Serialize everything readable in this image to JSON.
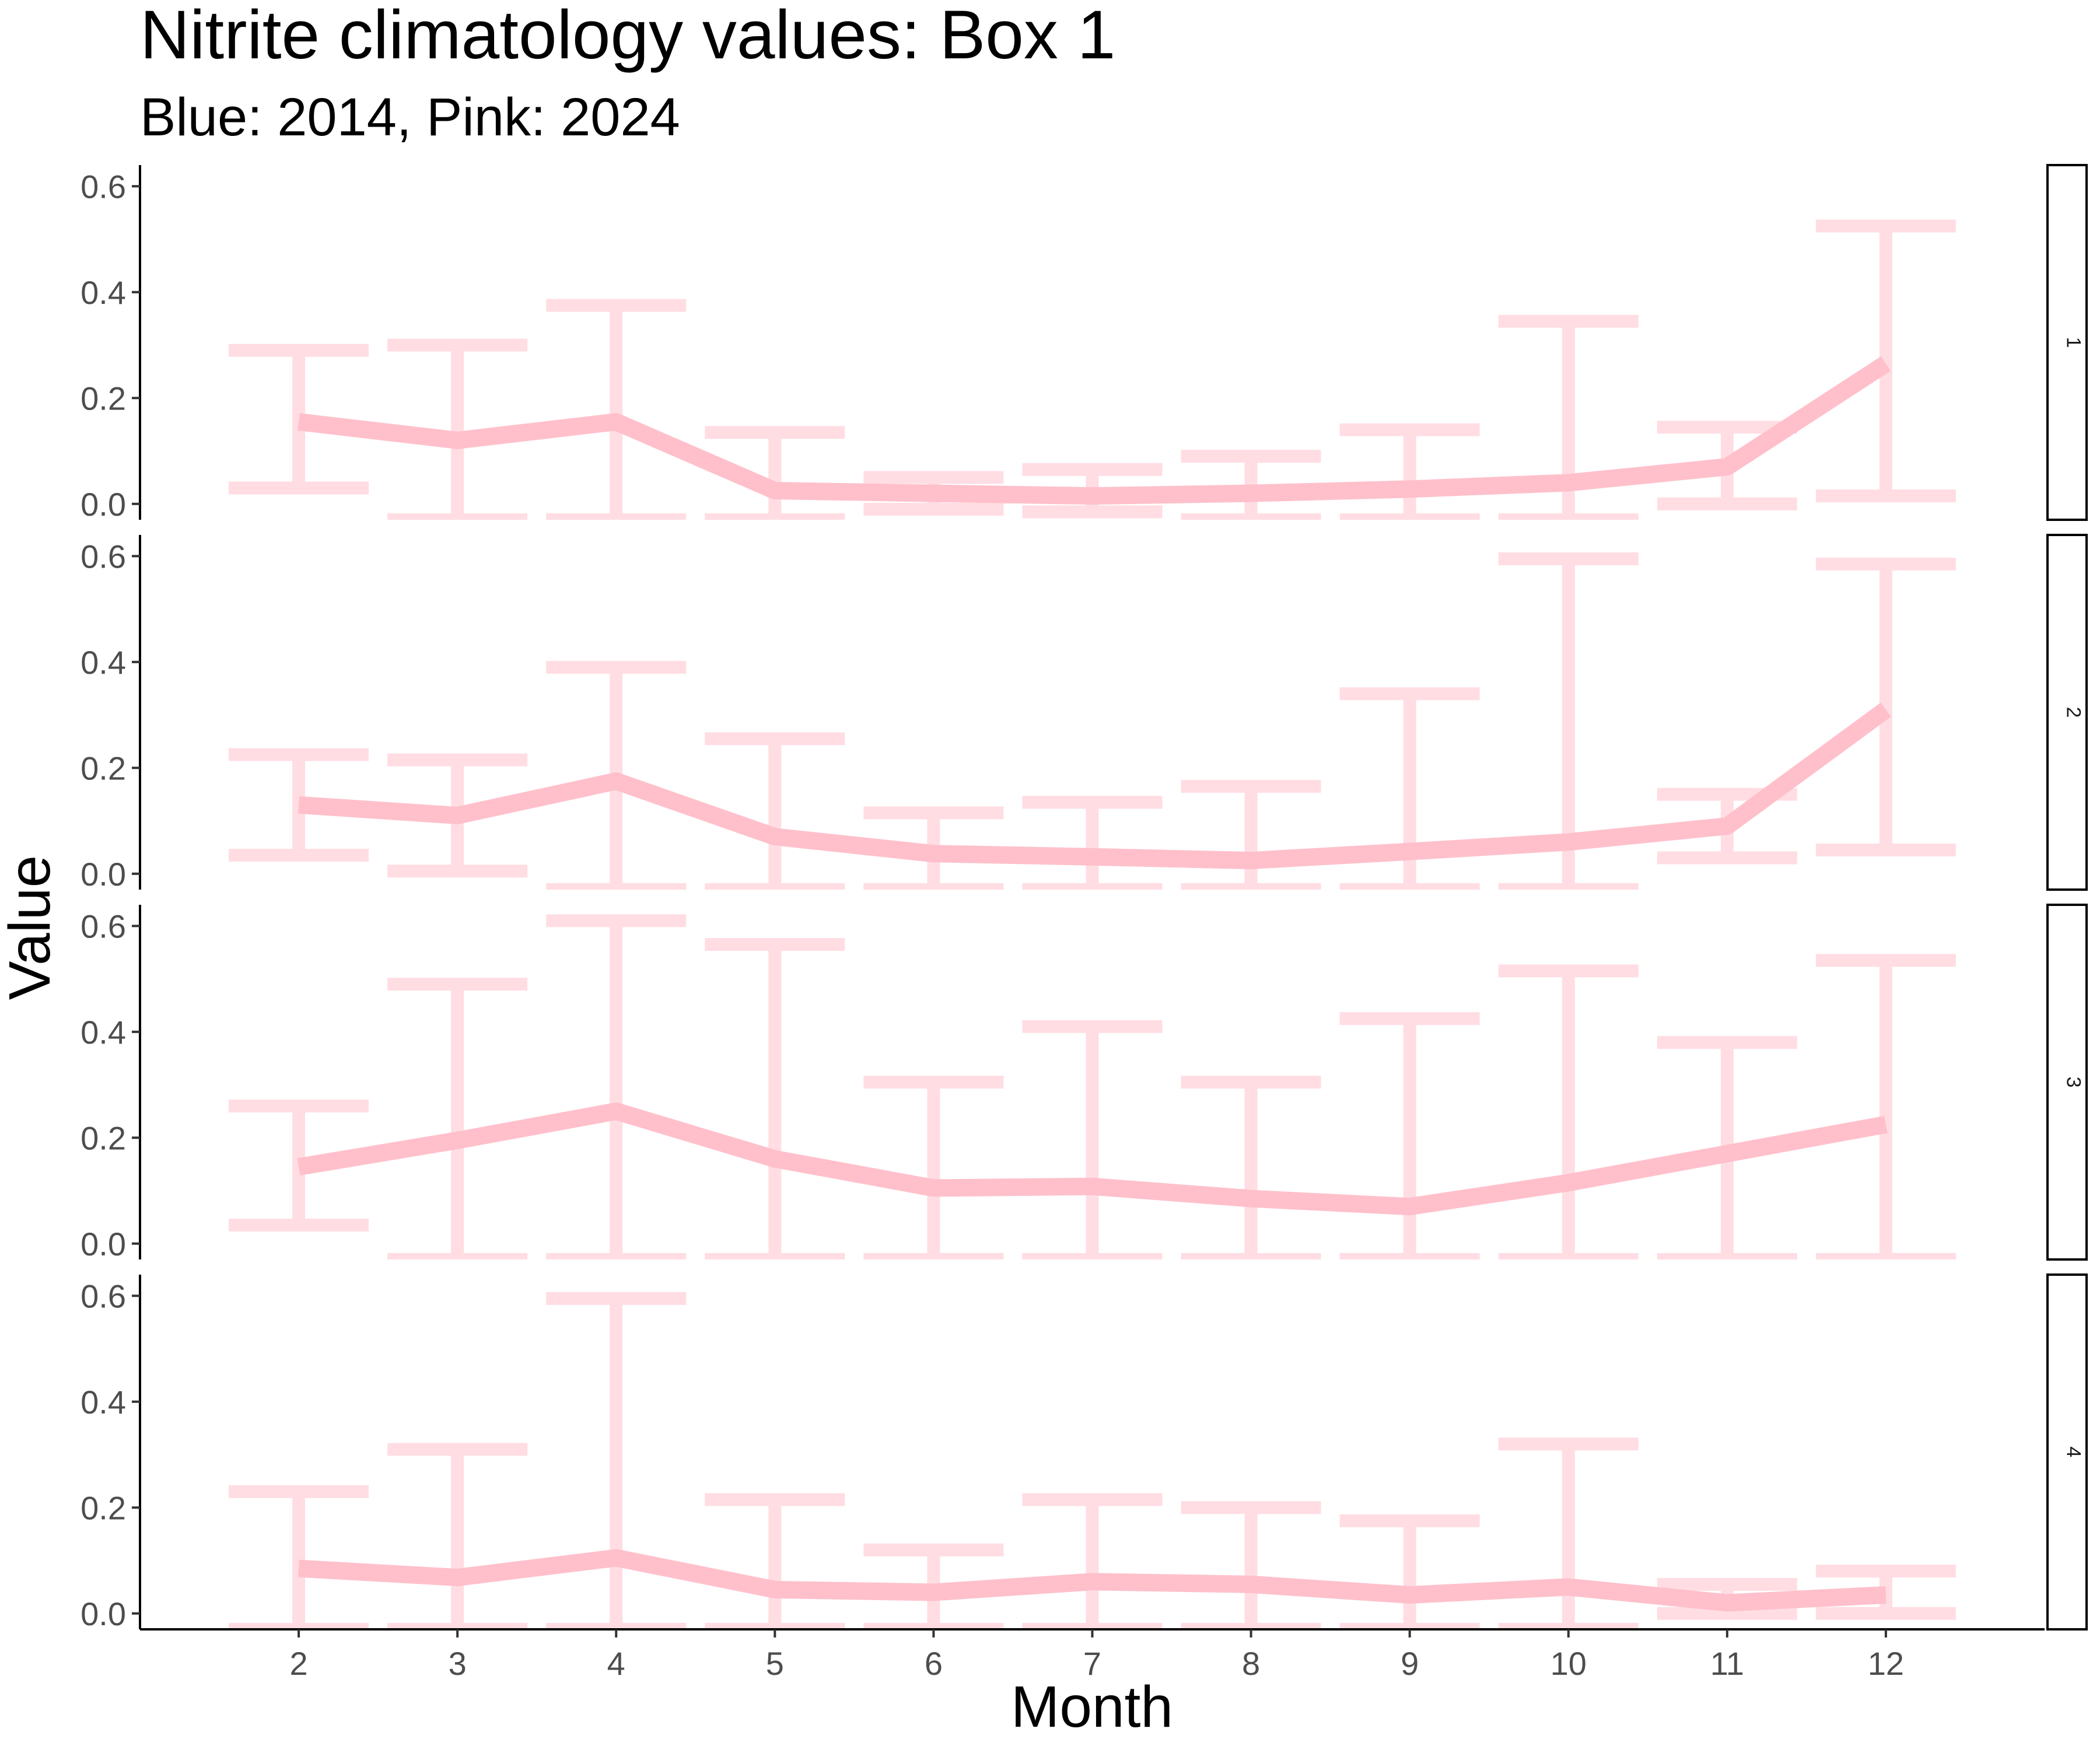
{
  "chart_data": {
    "type": "line",
    "title": "Nitrite climatology values: Box 1",
    "subtitle": "Blue: 2014, Pink: 2024",
    "xlabel": "Month",
    "ylabel": "Value",
    "x": [
      2,
      3,
      4,
      5,
      6,
      7,
      8,
      9,
      10,
      11,
      12
    ],
    "xlim": [
      1,
      13
    ],
    "ylim": [
      -0.03,
      0.64
    ],
    "yticks": [
      0.0,
      0.2,
      0.4,
      0.6
    ],
    "ytick_labels": [
      "0.0",
      "0.2",
      "0.4",
      "0.6"
    ],
    "xtick_labels": [
      "2",
      "3",
      "4",
      "5",
      "6",
      "7",
      "8",
      "9",
      "10",
      "11",
      "12"
    ],
    "grid": false,
    "legend": "none",
    "colors": {
      "line": "#ffc0cb",
      "errorbar": "#ffdde3"
    },
    "panels": [
      {
        "strip": "1",
        "mean": [
          0.155,
          0.12,
          0.155,
          0.025,
          0.02,
          0.015,
          0.02,
          0.028,
          0.04,
          0.07,
          0.265
        ],
        "lower": [
          0.03,
          -0.03,
          -0.03,
          -0.03,
          -0.01,
          -0.015,
          -0.03,
          -0.03,
          -0.03,
          0.0,
          0.015
        ],
        "upper": [
          0.29,
          0.3,
          0.375,
          0.135,
          0.05,
          0.065,
          0.09,
          0.14,
          0.345,
          0.145,
          0.525
        ]
      },
      {
        "strip": "2",
        "mean": [
          0.13,
          0.11,
          0.175,
          0.07,
          0.038,
          0.032,
          0.025,
          0.042,
          0.06,
          0.09,
          0.31
        ],
        "lower": [
          0.035,
          0.005,
          -0.03,
          -0.03,
          -0.03,
          -0.03,
          -0.03,
          -0.03,
          -0.03,
          0.03,
          0.045
        ],
        "upper": [
          0.225,
          0.215,
          0.39,
          0.255,
          0.115,
          0.135,
          0.165,
          0.34,
          0.595,
          0.15,
          0.585
        ]
      },
      {
        "strip": "3",
        "mean": [
          0.145,
          0.195,
          0.25,
          0.16,
          0.105,
          0.108,
          0.085,
          0.07,
          0.115,
          0.17,
          0.225
        ],
        "lower": [
          0.035,
          -0.03,
          -0.03,
          -0.03,
          -0.03,
          -0.03,
          -0.03,
          -0.03,
          -0.03,
          -0.03,
          -0.03
        ],
        "upper": [
          0.26,
          0.49,
          0.61,
          0.565,
          0.305,
          0.41,
          0.305,
          0.425,
          0.515,
          0.38,
          0.535
        ]
      },
      {
        "strip": "4",
        "mean": [
          0.085,
          0.068,
          0.105,
          0.045,
          0.04,
          0.06,
          0.055,
          0.035,
          0.05,
          0.02,
          0.035
        ],
        "lower": [
          -0.03,
          -0.03,
          -0.03,
          -0.03,
          -0.03,
          -0.03,
          -0.03,
          -0.03,
          -0.03,
          -0.0,
          0.0
        ],
        "upper": [
          0.23,
          0.31,
          0.595,
          0.215,
          0.12,
          0.215,
          0.2,
          0.175,
          0.32,
          0.055,
          0.08
        ]
      }
    ]
  }
}
